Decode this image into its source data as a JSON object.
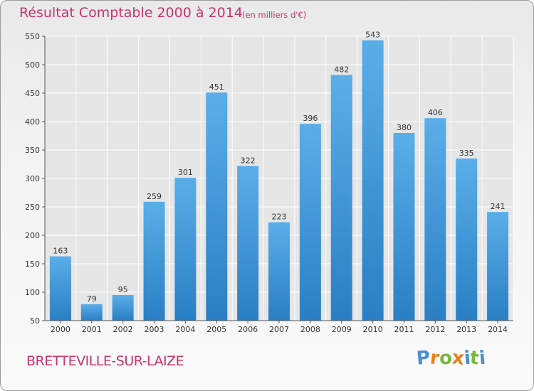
{
  "header": {
    "title": "Résultat Comptable 2000 à 2014",
    "subtitle": "(en milliers d'€)"
  },
  "footer": {
    "commune": "BRETTEVILLE-SUR-LAIZE",
    "logo_letters": [
      "P",
      "r",
      "o",
      "x",
      "i",
      "t",
      "i"
    ]
  },
  "colors": {
    "title": "#c8346b",
    "bar_top": "#5aaee8",
    "bar_bottom": "#2a7fc4",
    "grid": "#ffffff",
    "logo": [
      "#4a8fd0",
      "#e8811f",
      "#7ab640",
      "#e8811f",
      "#4a8fd0",
      "#7ab640",
      "#4a8fd0"
    ]
  },
  "chart_data": {
    "type": "bar",
    "title": "Résultat Comptable 2000 à 2014",
    "subtitle": "(en milliers d'€)",
    "categories": [
      "2000",
      "2001",
      "2002",
      "2003",
      "2004",
      "2005",
      "2006",
      "2007",
      "2008",
      "2009",
      "2010",
      "2011",
      "2012",
      "2013",
      "2014"
    ],
    "values": [
      163,
      79,
      95,
      259,
      301,
      451,
      322,
      223,
      396,
      482,
      543,
      380,
      406,
      335,
      241
    ],
    "xlabel": "",
    "ylabel": "",
    "ylim": [
      50,
      550
    ],
    "yticks": [
      50,
      100,
      150,
      200,
      250,
      300,
      350,
      400,
      450,
      500,
      550
    ],
    "grid": true,
    "legend": "none"
  }
}
